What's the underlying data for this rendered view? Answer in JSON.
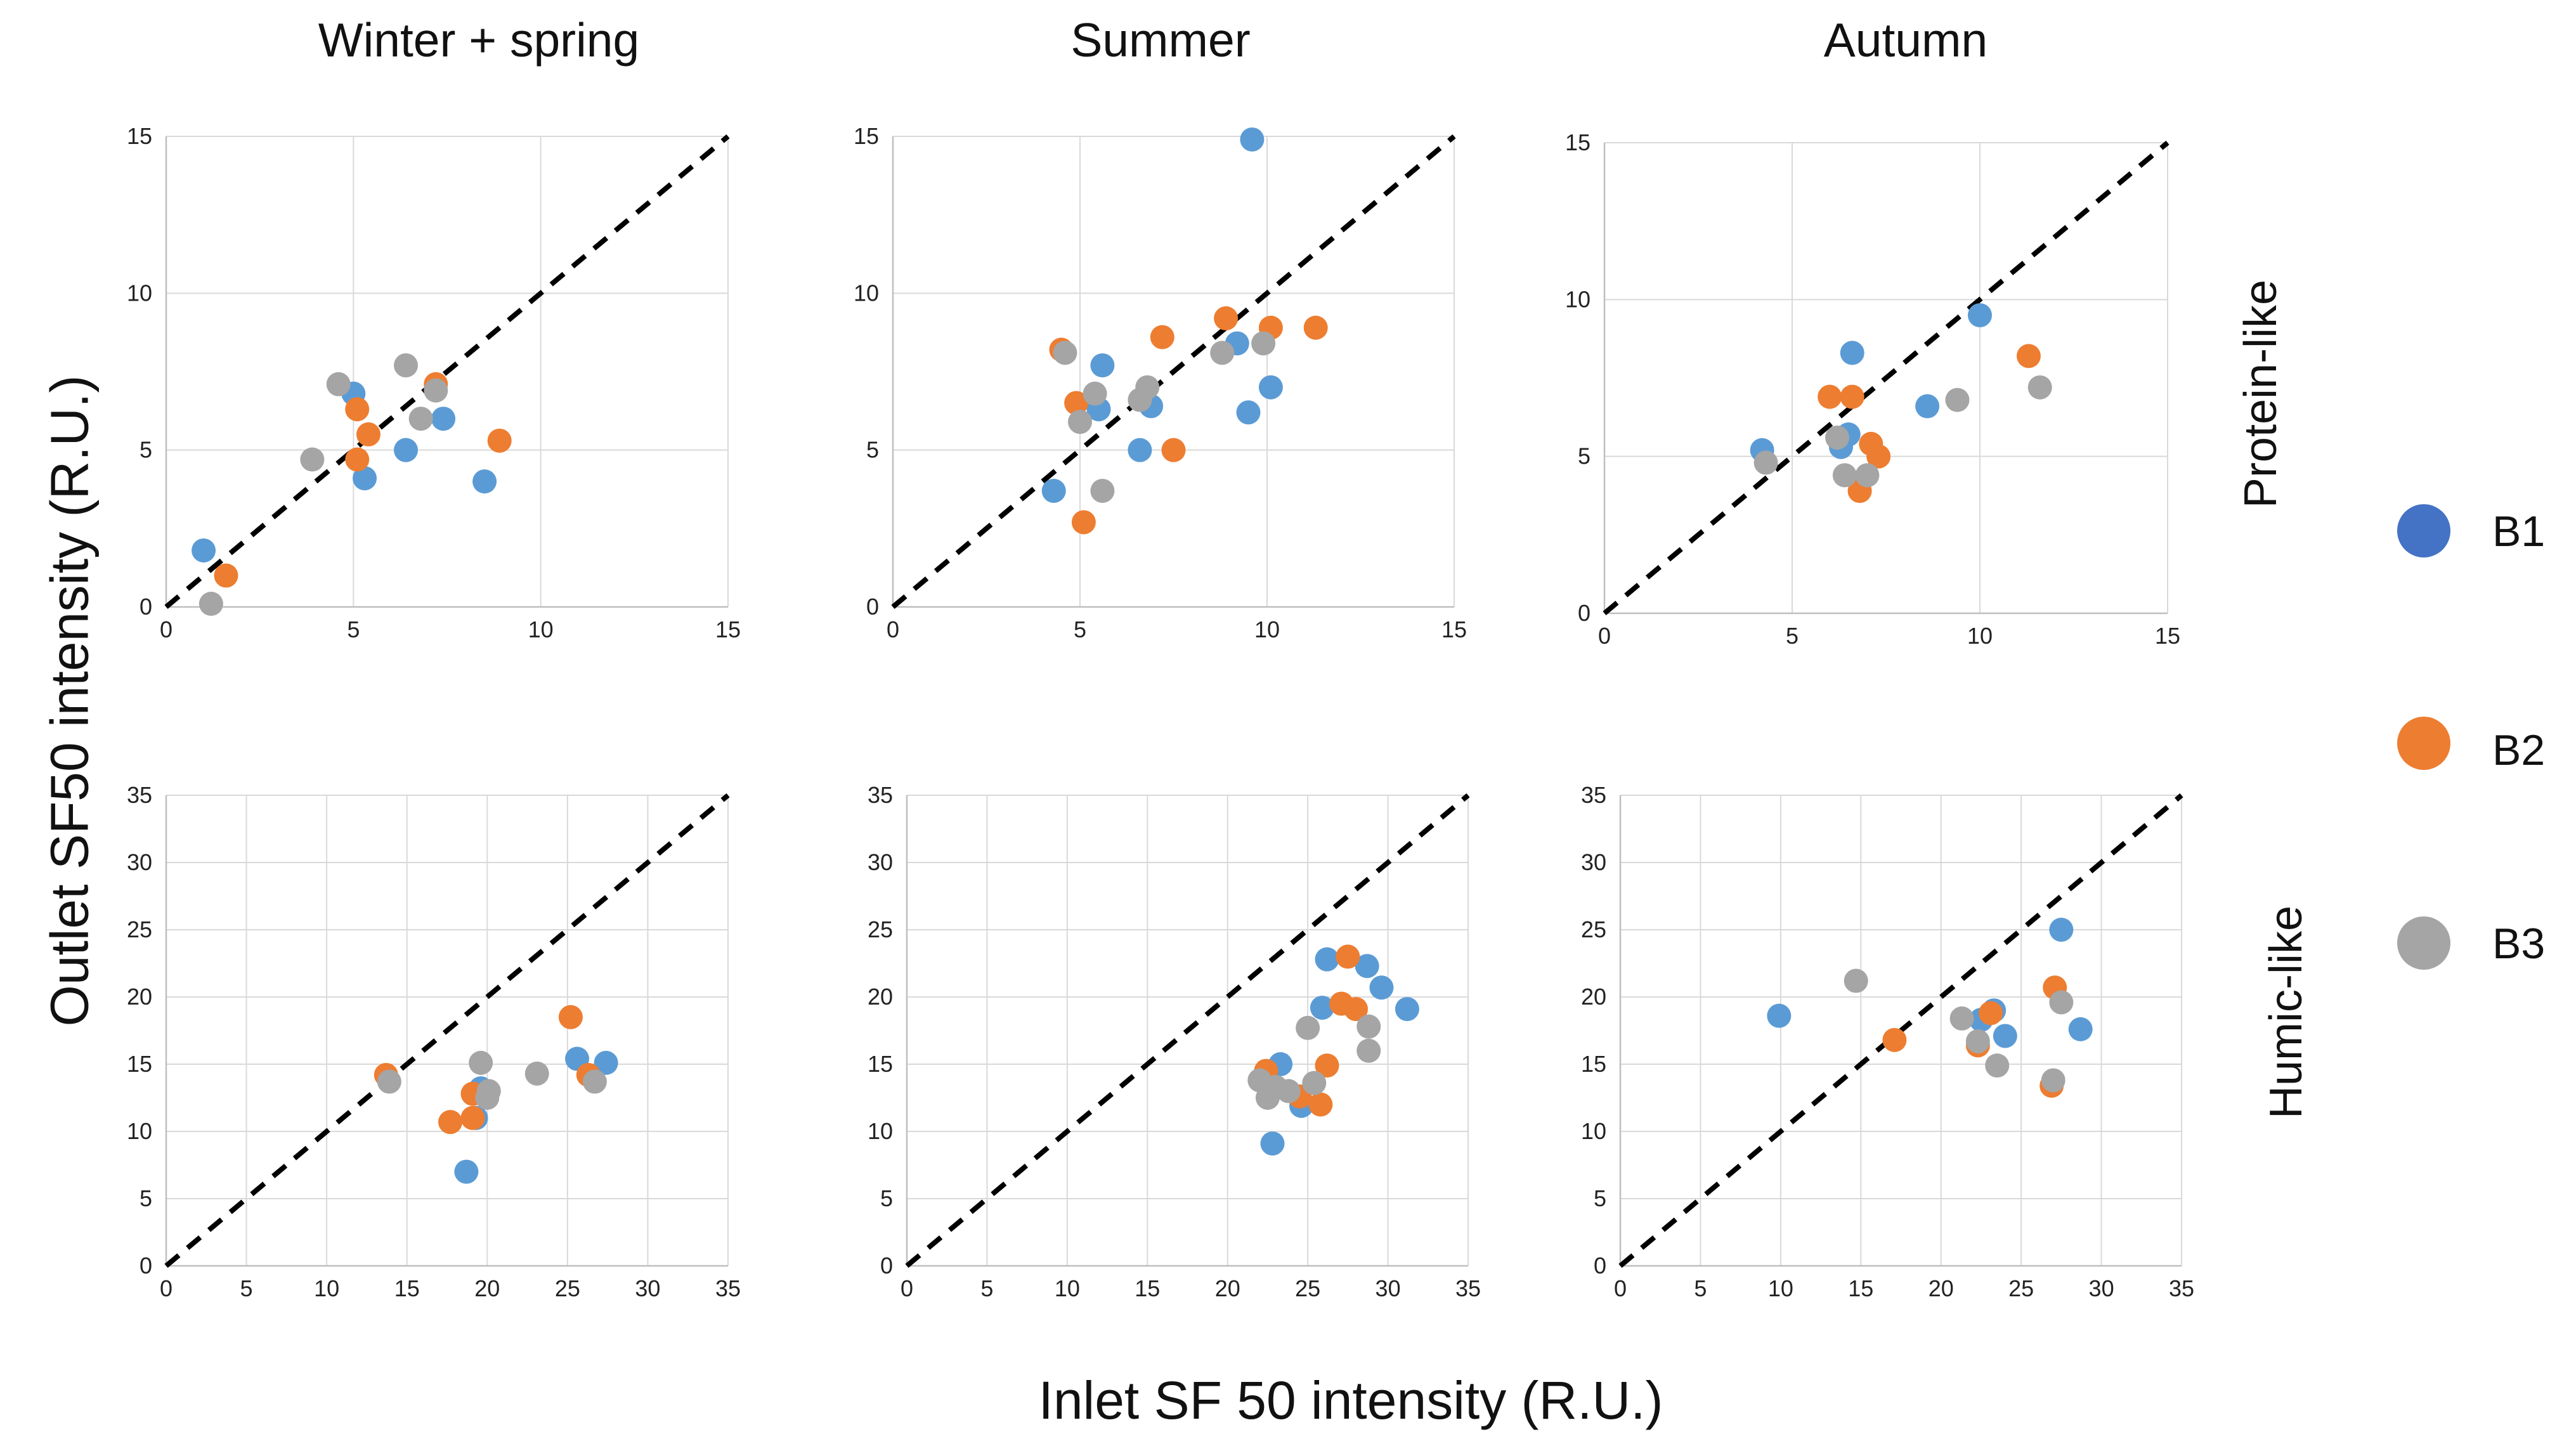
{
  "legend": [
    {
      "label": "B1",
      "color": "#5b9bd5"
    },
    {
      "label": "B2",
      "color": "#ed7d31"
    },
    {
      "label": "B3",
      "color": "#a5a5a5"
    }
  ],
  "x_axis_title": "Inlet SF 50 intensity (R.U.)",
  "y_axis_title": "Outlet SF50 intensity (R.U.)",
  "columns": [
    "Winter + spring",
    "Summer",
    "Autumn"
  ],
  "rows": [
    "Protein-like",
    "Humic-like"
  ],
  "chart_data": [
    {
      "type": "scatter",
      "id": "protein-winter",
      "row": "Protein-like",
      "column": "Winter + spring",
      "xlim": [
        0,
        15
      ],
      "ylim": [
        0,
        15
      ],
      "xticks": [
        0,
        5,
        10,
        15
      ],
      "yticks": [
        0,
        5,
        10,
        15
      ],
      "diagonal": true,
      "series": [
        {
          "name": "B1",
          "points": [
            [
              1.0,
              1.8
            ],
            [
              5.0,
              6.8
            ],
            [
              5.3,
              4.1
            ],
            [
              6.4,
              5.0
            ],
            [
              7.4,
              6.0
            ],
            [
              8.5,
              4.0
            ]
          ]
        },
        {
          "name": "B2",
          "points": [
            [
              1.6,
              1.0
            ],
            [
              5.1,
              6.3
            ],
            [
              5.4,
              5.5
            ],
            [
              5.1,
              4.7
            ],
            [
              7.2,
              7.1
            ],
            [
              8.9,
              5.3
            ]
          ]
        },
        {
          "name": "B3",
          "points": [
            [
              1.2,
              0.1
            ],
            [
              3.9,
              4.7
            ],
            [
              4.6,
              7.1
            ],
            [
              6.4,
              7.7
            ],
            [
              6.8,
              6.0
            ],
            [
              7.2,
              6.9
            ]
          ]
        }
      ]
    },
    {
      "type": "scatter",
      "id": "protein-summer",
      "row": "Protein-like",
      "column": "Summer",
      "xlim": [
        0,
        15
      ],
      "ylim": [
        0,
        15
      ],
      "xticks": [
        0,
        5,
        10,
        15
      ],
      "yticks": [
        0,
        5,
        10,
        15
      ],
      "diagonal": true,
      "series": [
        {
          "name": "B1",
          "points": [
            [
              9.6,
              14.9
            ],
            [
              4.3,
              3.7
            ],
            [
              5.5,
              6.3
            ],
            [
              5.6,
              7.7
            ],
            [
              6.6,
              5.0
            ],
            [
              6.9,
              6.4
            ],
            [
              9.2,
              8.4
            ],
            [
              9.5,
              6.2
            ],
            [
              10.1,
              7.0
            ]
          ]
        },
        {
          "name": "B2",
          "points": [
            [
              4.5,
              8.2
            ],
            [
              4.9,
              6.5
            ],
            [
              5.1,
              2.7
            ],
            [
              7.2,
              8.6
            ],
            [
              7.5,
              5.0
            ],
            [
              8.9,
              9.2
            ],
            [
              10.1,
              8.9
            ],
            [
              11.3,
              8.9
            ]
          ]
        },
        {
          "name": "B3",
          "points": [
            [
              4.6,
              8.1
            ],
            [
              5.0,
              5.9
            ],
            [
              5.4,
              6.8
            ],
            [
              5.6,
              3.7
            ],
            [
              6.6,
              6.6
            ],
            [
              6.8,
              7.0
            ],
            [
              8.8,
              8.1
            ],
            [
              9.9,
              8.4
            ]
          ]
        }
      ]
    },
    {
      "type": "scatter",
      "id": "protein-autumn",
      "row": "Protein-like",
      "column": "Autumn",
      "xlim": [
        0,
        15
      ],
      "ylim": [
        0,
        15
      ],
      "xticks": [
        0,
        5,
        10,
        15
      ],
      "yticks": [
        0,
        5,
        10,
        15
      ],
      "diagonal": true,
      "series": [
        {
          "name": "B1",
          "points": [
            [
              4.2,
              5.2
            ],
            [
              6.6,
              8.3
            ],
            [
              6.5,
              5.7
            ],
            [
              6.3,
              5.3
            ],
            [
              8.6,
              6.6
            ],
            [
              10.0,
              9.5
            ]
          ]
        },
        {
          "name": "B2",
          "points": [
            [
              6.0,
              6.9
            ],
            [
              6.6,
              6.9
            ],
            [
              6.8,
              3.9
            ],
            [
              7.1,
              5.4
            ],
            [
              7.3,
              5.0
            ],
            [
              11.3,
              8.2
            ]
          ]
        },
        {
          "name": "B3",
          "points": [
            [
              4.3,
              4.8
            ],
            [
              6.2,
              5.6
            ],
            [
              6.4,
              4.4
            ],
            [
              7.0,
              4.4
            ],
            [
              9.4,
              6.8
            ],
            [
              11.6,
              7.2
            ]
          ]
        }
      ]
    },
    {
      "type": "scatter",
      "id": "humic-winter",
      "row": "Humic-like",
      "column": "Winter + spring",
      "xlim": [
        0,
        35
      ],
      "ylim": [
        0,
        35
      ],
      "xticks": [
        0,
        5,
        10,
        15,
        20,
        25,
        30,
        35
      ],
      "yticks": [
        0,
        5,
        10,
        15,
        20,
        25,
        30,
        35
      ],
      "diagonal": true,
      "series": [
        {
          "name": "B1",
          "points": [
            [
              18.7,
              7.0
            ],
            [
              19.3,
              11.0
            ],
            [
              19.6,
              13.2
            ],
            [
              25.6,
              15.4
            ],
            [
              27.4,
              15.1
            ]
          ]
        },
        {
          "name": "B2",
          "points": [
            [
              13.7,
              14.2
            ],
            [
              17.7,
              10.7
            ],
            [
              19.1,
              11.0
            ],
            [
              19.1,
              12.8
            ],
            [
              25.2,
              18.5
            ],
            [
              26.3,
              14.2
            ]
          ]
        },
        {
          "name": "B3",
          "points": [
            [
              13.9,
              13.7
            ],
            [
              19.6,
              15.1
            ],
            [
              20.0,
              12.5
            ],
            [
              20.1,
              13.0
            ],
            [
              23.1,
              14.3
            ],
            [
              26.7,
              13.7
            ]
          ]
        }
      ]
    },
    {
      "type": "scatter",
      "id": "humic-summer",
      "row": "Humic-like",
      "column": "Summer",
      "xlim": [
        0,
        35
      ],
      "ylim": [
        0,
        35
      ],
      "xticks": [
        0,
        5,
        10,
        15,
        20,
        25,
        30,
        35
      ],
      "yticks": [
        0,
        5,
        10,
        15,
        20,
        25,
        30,
        35
      ],
      "diagonal": true,
      "series": [
        {
          "name": "B1",
          "points": [
            [
              22.8,
              9.1
            ],
            [
              23.3,
              15.0
            ],
            [
              24.6,
              11.9
            ],
            [
              25.9,
              19.2
            ],
            [
              26.2,
              22.8
            ],
            [
              28.7,
              22.3
            ],
            [
              29.6,
              20.7
            ],
            [
              31.2,
              19.1
            ]
          ]
        },
        {
          "name": "B2",
          "points": [
            [
              22.4,
              14.5
            ],
            [
              24.5,
              12.6
            ],
            [
              25.8,
              12.0
            ],
            [
              26.2,
              14.9
            ],
            [
              27.1,
              19.5
            ],
            [
              27.5,
              23.0
            ],
            [
              28.0,
              19.1
            ]
          ]
        },
        {
          "name": "B3",
          "points": [
            [
              22.0,
              13.8
            ],
            [
              22.5,
              12.5
            ],
            [
              23.0,
              13.3
            ],
            [
              23.8,
              13.0
            ],
            [
              25.0,
              17.7
            ],
            [
              25.4,
              13.6
            ],
            [
              28.8,
              17.8
            ],
            [
              28.8,
              16.0
            ]
          ]
        }
      ]
    },
    {
      "type": "scatter",
      "id": "humic-autumn",
      "row": "Humic-like",
      "column": "Autumn",
      "xlim": [
        0,
        35
      ],
      "ylim": [
        0,
        35
      ],
      "xticks": [
        0,
        5,
        10,
        15,
        20,
        25,
        30,
        35
      ],
      "yticks": [
        0,
        5,
        10,
        15,
        20,
        25,
        30,
        35
      ],
      "diagonal": true,
      "series": [
        {
          "name": "B1",
          "points": [
            [
              9.9,
              18.6
            ],
            [
              22.5,
              18.3
            ],
            [
              23.3,
              19.0
            ],
            [
              24.0,
              17.1
            ],
            [
              27.5,
              25.0
            ],
            [
              28.7,
              17.6
            ]
          ]
        },
        {
          "name": "B2",
          "points": [
            [
              17.1,
              16.8
            ],
            [
              22.3,
              16.4
            ],
            [
              23.1,
              18.8
            ],
            [
              26.9,
              13.4
            ],
            [
              27.1,
              20.7
            ]
          ]
        },
        {
          "name": "B3",
          "points": [
            [
              14.7,
              21.2
            ],
            [
              21.3,
              18.4
            ],
            [
              22.3,
              16.7
            ],
            [
              23.5,
              14.9
            ],
            [
              27.0,
              13.8
            ],
            [
              27.5,
              19.6
            ]
          ]
        }
      ]
    }
  ]
}
